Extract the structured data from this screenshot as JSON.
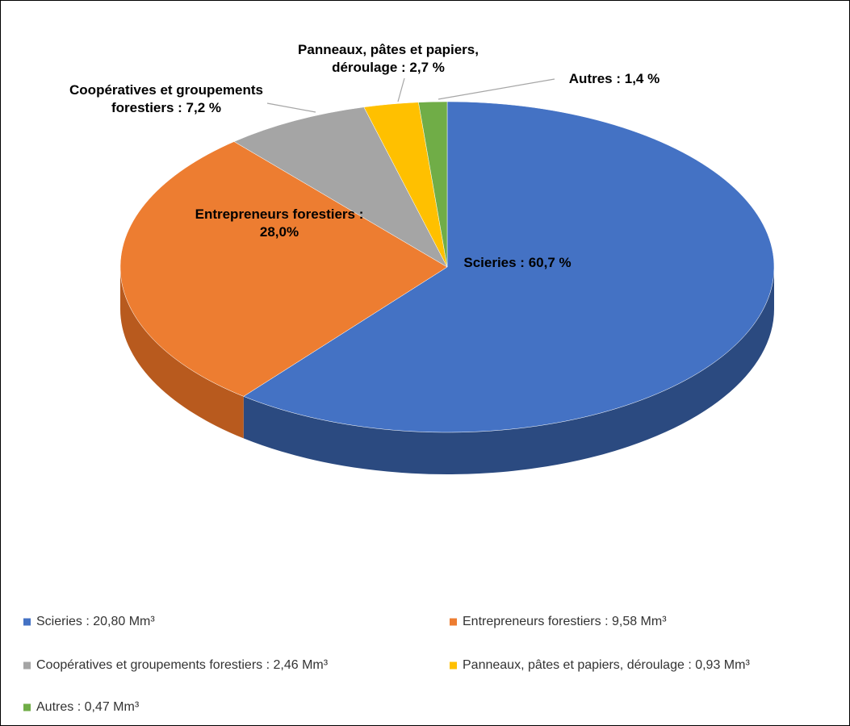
{
  "chart_data": {
    "type": "pie",
    "categories": [
      "Scieries : 20,80 Mm³",
      "Entrepreneurs forestiers : 9,58 Mm³",
      "Coopératives et groupements forestiers : 2,46 Mm³",
      "Panneaux, pâtes et papiers, déroulage : 0,93 Mm³",
      "Autres : 0,47 Mm³"
    ],
    "values": [
      60.7,
      28.0,
      7.2,
      2.7,
      1.4
    ],
    "value_labels": [
      "Scieries : 60,7 %",
      "Entrepreneurs forestiers :\n28,0%",
      "Coopératives et groupements\nforestiers : 7,2 %",
      "Panneaux, pâtes et papiers,\ndéroulage : 2,7 %",
      "Autres : 1,4 %"
    ],
    "colors": [
      "#4472c4",
      "#ed7d31",
      "#a5a5a5",
      "#ffc000",
      "#70ad47"
    ],
    "side_colors": [
      "#2b4a80",
      "#b85a1e",
      "#7a7a7a",
      "#bf9000",
      "#4e7a31"
    ]
  }
}
